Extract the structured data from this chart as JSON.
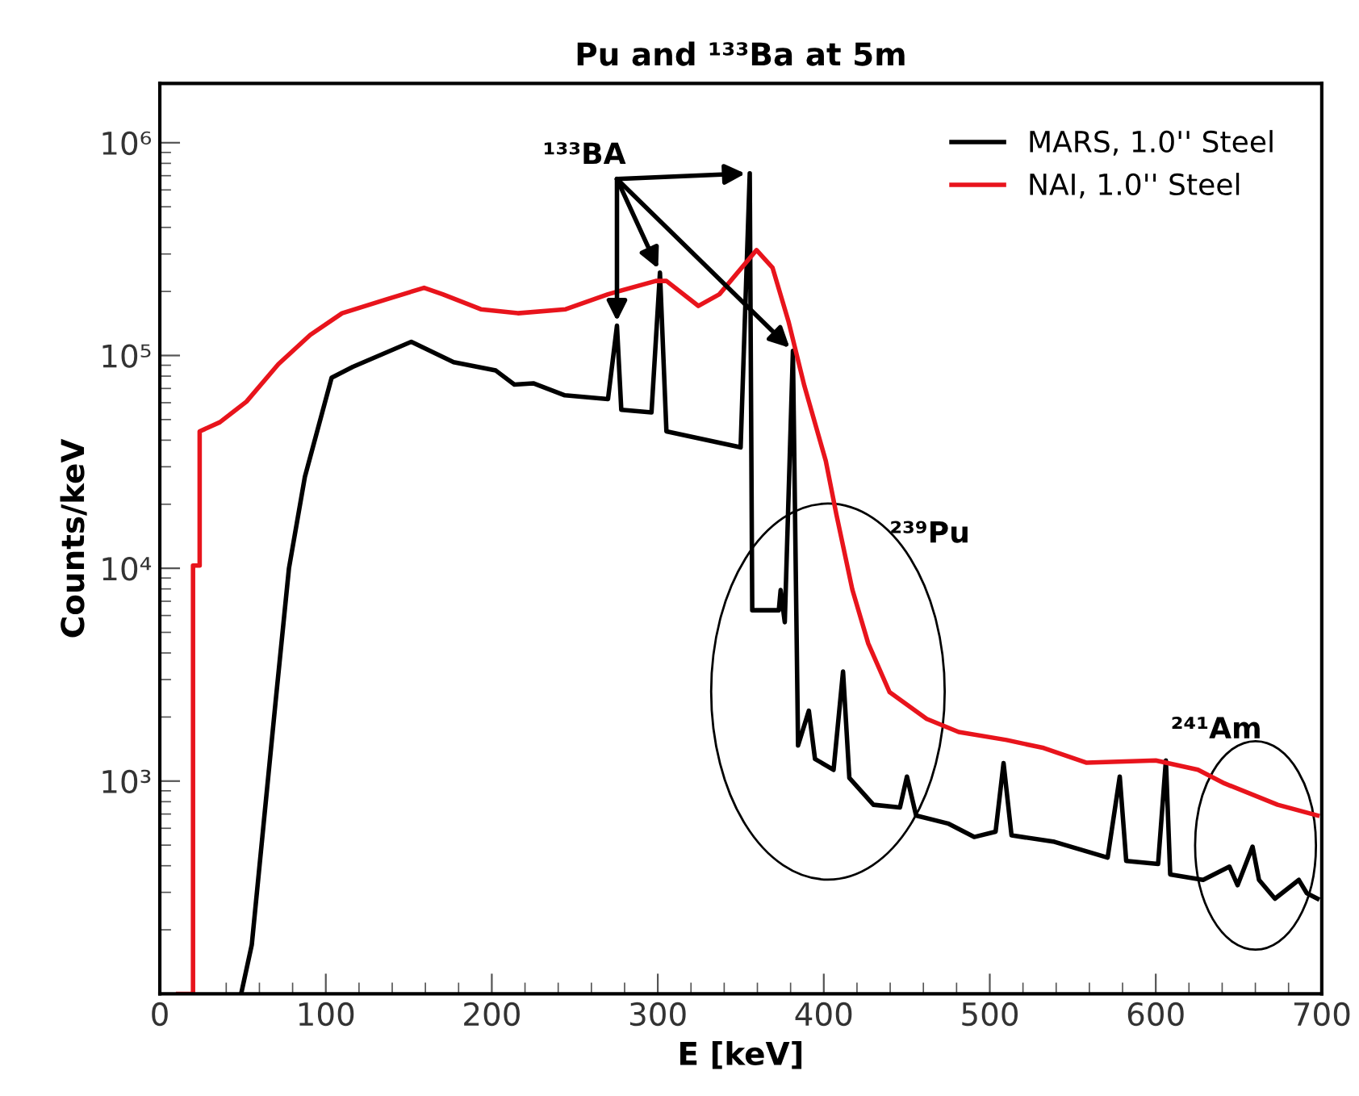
{
  "chart_data": {
    "type": "line",
    "title": "Pu and ¹³³Ba at 5m",
    "xlabel": "E [keV]",
    "ylabel": "Counts/keV",
    "log": "y",
    "xlim": [
      0,
      700
    ],
    "xticks": [
      0,
      100,
      200,
      300,
      400,
      500,
      600,
      700
    ],
    "ylim": [
      100,
      1900000
    ],
    "yticks": [
      {
        "value": 1000,
        "label": "10³"
      },
      {
        "value": 10000,
        "label": "10⁴"
      },
      {
        "value": 100000,
        "label": "10⁵"
      },
      {
        "value": 1000000,
        "label": "10⁶"
      }
    ],
    "legend": "top right",
    "grid": false,
    "line_style": "solid",
    "marker": "none",
    "annotations": [
      {
        "text": "¹³³BA",
        "x": 275.4,
        "y": 138000
      },
      "²³⁹Pu",
      "²⁴¹Am"
    ],
    "series": [
      {
        "name": "MARS, 1.0'' Steel",
        "color": "#000000",
        "x": [
          49,
          55.4,
          61.8,
          69.7,
          77.8,
          87.4,
          103.5,
          116.3,
          151.5,
          177,
          202.4,
          213.6,
          225,
          244,
          270,
          275.4,
          278,
          296.2,
          301.3,
          305.2,
          349.9,
          355.4,
          356.9,
          372.9,
          374,
          376.5,
          381.4,
          384.5,
          391,
          394.7,
          405.9,
          411.6,
          415.4,
          429.9,
          445.9,
          450.1,
          455.6,
          474.8,
          490.6,
          503.5,
          508.3,
          513.1,
          539,
          571,
          578.3,
          582.2,
          601.4,
          606.1,
          608.7,
          628.5,
          644.4,
          649.3,
          658.3,
          662.2,
          671.8,
          686.2,
          691,
          697.4
        ],
        "values": [
          100,
          170,
          550,
          2340,
          10000,
          26900,
          78700,
          88500,
          116000,
          93000,
          85000,
          73000,
          74000,
          65000,
          62400,
          138000,
          55600,
          54000,
          245000,
          44000,
          37000,
          718000,
          6350,
          6350,
          7900,
          5580,
          105000,
          1470,
          2140,
          1270,
          1130,
          3270,
          1035,
          774,
          752,
          1050,
          689,
          632,
          546,
          578,
          1215,
          556,
          518,
          437,
          1050,
          421,
          408,
          1250,
          364,
          343,
          396,
          324,
          492,
          343,
          280,
          343,
          297,
          280
        ]
      },
      {
        "name": "NAI, 1.0'' Steel",
        "color": "#e8141c",
        "x": [
          11,
          20,
          20,
          24,
          24,
          36.2,
          52.2,
          71.4,
          90.6,
          109.8,
          135.8,
          159.2,
          170.4,
          193.4,
          215.7,
          244.5,
          270,
          298.8,
          305.2,
          324.4,
          337.1,
          359.5,
          369.1,
          378.7,
          388.3,
          401.2,
          407.6,
          417.2,
          426.8,
          439.6,
          462,
          481.3,
          510.1,
          532.5,
          558.4,
          600,
          625.4,
          641.4,
          673.4,
          697.4
        ],
        "values": [
          100,
          100,
          10300,
          10300,
          44000,
          48600,
          60700,
          91000,
          125000,
          158000,
          183000,
          208000,
          194000,
          165000,
          158000,
          165000,
          194000,
          224000,
          224000,
          171000,
          194000,
          313000,
          259000,
          145000,
          72000,
          32000,
          17900,
          7940,
          4430,
          2620,
          1960,
          1700,
          1560,
          1430,
          1220,
          1250,
          1130,
          975,
          774,
          689
        ]
      }
    ]
  }
}
